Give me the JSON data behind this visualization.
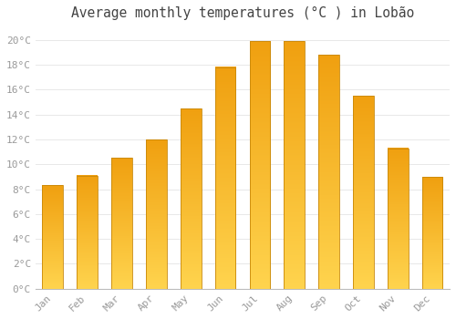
{
  "title": "Average monthly temperatures (°C ) in Lobão",
  "months": [
    "Jan",
    "Feb",
    "Mar",
    "Apr",
    "May",
    "Jun",
    "Jul",
    "Aug",
    "Sep",
    "Oct",
    "Nov",
    "Dec"
  ],
  "values": [
    8.3,
    9.1,
    10.5,
    12.0,
    14.5,
    17.8,
    19.9,
    19.9,
    18.8,
    15.5,
    11.3,
    9.0
  ],
  "bar_color_light": "#FFD44E",
  "bar_color_dark": "#F0A010",
  "bar_edge_color": "#C8880A",
  "ylim": [
    0,
    21
  ],
  "yticks": [
    0,
    2,
    4,
    6,
    8,
    10,
    12,
    14,
    16,
    18,
    20
  ],
  "ytick_labels": [
    "0°C",
    "2°C",
    "4°C",
    "6°C",
    "8°C",
    "10°C",
    "12°C",
    "14°C",
    "16°C",
    "18°C",
    "20°C"
  ],
  "bg_color": "#ffffff",
  "grid_color": "#e8e8e8",
  "title_fontsize": 10.5,
  "tick_fontsize": 8,
  "tick_color": "#999999",
  "font_family": "monospace"
}
